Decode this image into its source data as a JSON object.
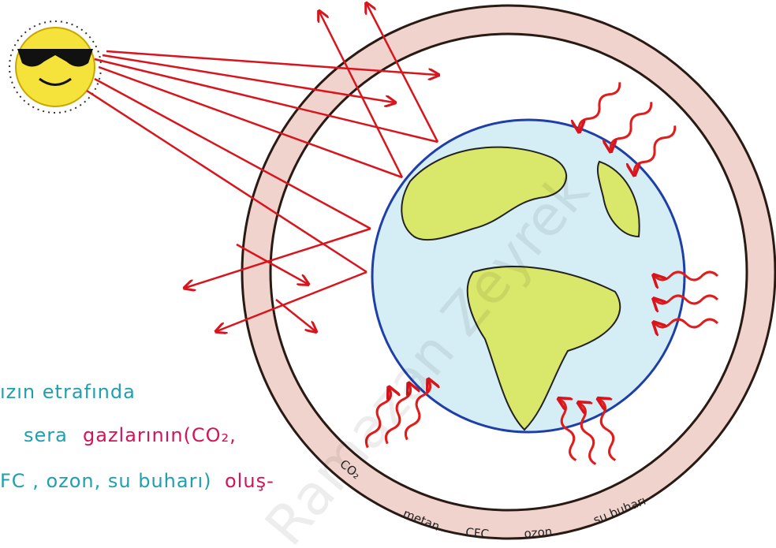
{
  "texts": {
    "line1": "ızın etrafında",
    "line2a": "sera",
    "line2b": "gazlarının(CO₂,",
    "line3a": "FC , ozon, su buharı)",
    "line3b": "oluş-"
  },
  "ring_labels": [
    "CO₂",
    "metan",
    "CFC",
    "ozon",
    "su buharı"
  ],
  "watermark": "Ramazan Zeyrek"
}
